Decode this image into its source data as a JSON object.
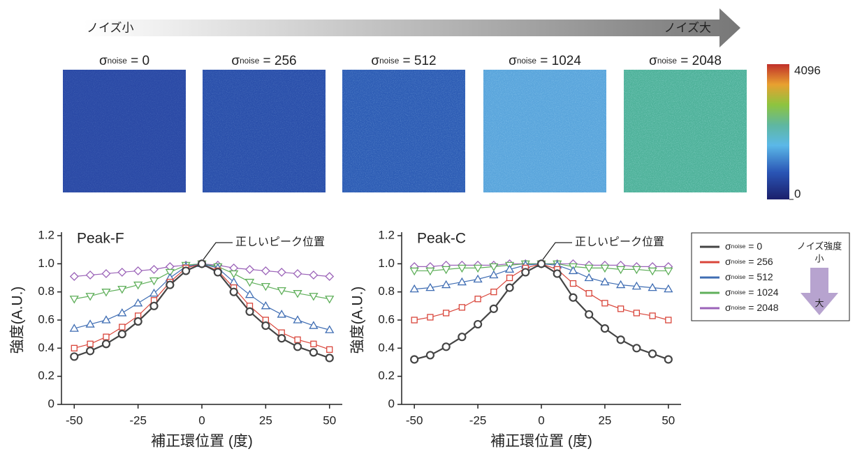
{
  "header": {
    "low": "ノイズ小",
    "high": "ノイズ大"
  },
  "images": [
    "σnoise = 0",
    "σnoise = 256",
    "σnoise = 512",
    "σnoise = 1024",
    "σnoise = 2048"
  ],
  "colorbar": {
    "max": "4096",
    "min": "0"
  },
  "noise_scale": {
    "title": "ノイズ強度",
    "low": "小",
    "high": "大"
  },
  "chart_data": [
    {
      "type": "line",
      "title": "Peak-F",
      "annotation": "正しいピーク位置",
      "x_label": "補正環位置 (度)",
      "y_label": "強度(A.U.)",
      "x": [
        -50,
        -43.75,
        -37.5,
        -31.25,
        -25,
        -18.75,
        -12.5,
        -6.25,
        0,
        6.25,
        12.5,
        18.75,
        25,
        31.25,
        37.5,
        43.75,
        50
      ],
      "xlim": [
        -55,
        55
      ],
      "xticks": [
        -50,
        -25,
        0,
        25,
        50
      ],
      "ylim": [
        0,
        1.2
      ],
      "yticks": [
        0,
        0.2,
        0.4,
        0.6,
        0.8,
        {
          "value": 1,
          "label": "1.0"
        },
        1.2
      ],
      "series": [
        {
          "color": "#444444",
          "marker": "circle",
          "values": [
            0.34,
            0.38,
            0.43,
            0.5,
            0.59,
            0.7,
            0.85,
            0.95,
            1.0,
            0.94,
            0.8,
            0.66,
            0.56,
            0.47,
            0.41,
            0.37,
            0.33
          ]
        },
        {
          "color": "#d9453a",
          "marker": "square",
          "values": [
            0.4,
            0.43,
            0.48,
            0.55,
            0.63,
            0.74,
            0.87,
            0.97,
            1.0,
            0.95,
            0.83,
            0.7,
            0.6,
            0.51,
            0.46,
            0.43,
            0.39
          ]
        },
        {
          "color": "#3f6db3",
          "marker": "triangle-up",
          "values": [
            0.54,
            0.57,
            0.6,
            0.65,
            0.72,
            0.79,
            0.9,
            0.98,
            1.0,
            0.97,
            0.87,
            0.78,
            0.7,
            0.64,
            0.6,
            0.56,
            0.53
          ]
        },
        {
          "color": "#5faf5a",
          "marker": "triangle-down",
          "values": [
            0.75,
            0.77,
            0.8,
            0.82,
            0.85,
            0.88,
            0.94,
            0.99,
            1.0,
            0.98,
            0.93,
            0.87,
            0.84,
            0.81,
            0.79,
            0.77,
            0.75
          ]
        },
        {
          "color": "#9b63b8",
          "marker": "diamond",
          "values": [
            0.91,
            0.92,
            0.93,
            0.94,
            0.95,
            0.96,
            0.98,
            0.99,
            1.0,
            0.99,
            0.97,
            0.96,
            0.95,
            0.94,
            0.93,
            0.92,
            0.91
          ]
        }
      ]
    },
    {
      "type": "line",
      "title": "Peak-C",
      "annotation": "正しいピーク位置",
      "x_label": "補正環位置 (度)",
      "y_label": "強度(A.U.)",
      "x": [
        -50,
        -43.75,
        -37.5,
        -31.25,
        -25,
        -18.75,
        -12.5,
        -6.25,
        0,
        6.25,
        12.5,
        18.75,
        25,
        31.25,
        37.5,
        43.75,
        50
      ],
      "xlim": [
        -55,
        55
      ],
      "xticks": [
        -50,
        -25,
        0,
        25,
        50
      ],
      "ylim": [
        0,
        1.2
      ],
      "yticks": [
        0,
        0.2,
        0.4,
        0.6,
        0.8,
        {
          "value": 1,
          "label": "1.0"
        },
        1.2
      ],
      "series": [
        {
          "name": "σnoise = 0",
          "color": "#444444",
          "marker": "circle",
          "values": [
            0.32,
            0.35,
            0.41,
            0.48,
            0.57,
            0.68,
            0.83,
            0.94,
            1.0,
            0.93,
            0.76,
            0.64,
            0.54,
            0.46,
            0.4,
            0.36,
            0.32
          ]
        },
        {
          "name": "σnoise = 256",
          "color": "#d9453a",
          "marker": "square",
          "values": [
            0.6,
            0.62,
            0.65,
            0.69,
            0.75,
            0.8,
            0.9,
            0.97,
            1.0,
            0.96,
            0.86,
            0.79,
            0.72,
            0.68,
            0.65,
            0.63,
            0.6
          ]
        },
        {
          "name": "σnoise = 512",
          "color": "#3f6db3",
          "marker": "triangle-up",
          "values": [
            0.82,
            0.83,
            0.85,
            0.87,
            0.89,
            0.92,
            0.96,
            0.99,
            1.0,
            0.99,
            0.95,
            0.9,
            0.87,
            0.85,
            0.84,
            0.83,
            0.82
          ]
        },
        {
          "name": "σnoise = 1024",
          "color": "#5faf5a",
          "marker": "triangle-down",
          "values": [
            0.95,
            0.95,
            0.96,
            0.97,
            0.97,
            0.98,
            0.99,
            1.0,
            1.0,
            1.0,
            0.98,
            0.97,
            0.97,
            0.96,
            0.96,
            0.95,
            0.95
          ]
        },
        {
          "name": "σnoise = 2048",
          "color": "#9b63b8",
          "marker": "diamond",
          "values": [
            0.98,
            0.98,
            0.99,
            0.99,
            0.99,
            0.99,
            1.0,
            1.0,
            1.0,
            1.0,
            1.0,
            0.99,
            0.99,
            0.99,
            0.98,
            0.98,
            0.98
          ]
        }
      ]
    }
  ]
}
